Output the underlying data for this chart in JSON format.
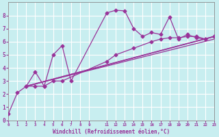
{
  "background_color": "#c8eef0",
  "line_color": "#993399",
  "grid_color": "#ffffff",
  "xlabel": "Windchill (Refroidissement éolien,°C)",
  "xlabel_color": "#993399",
  "ylabel_color": "#993399",
  "ylim": [
    0,
    9
  ],
  "xlim": [
    0,
    23
  ],
  "yticks": [
    0,
    1,
    2,
    3,
    4,
    5,
    6,
    7,
    8
  ],
  "xticks": [
    0,
    1,
    2,
    3,
    4,
    5,
    6,
    7,
    8,
    9,
    11,
    12,
    13,
    14,
    15,
    16,
    17,
    18,
    19,
    20,
    21,
    22,
    23
  ],
  "series1_x": [
    0,
    1,
    2,
    3,
    4,
    5,
    6,
    7,
    11,
    12,
    13,
    14,
    15,
    16,
    17,
    18,
    19,
    20,
    21,
    22,
    23
  ],
  "series1_y": [
    0.5,
    2.1,
    2.6,
    3.7,
    2.6,
    5.0,
    5.7,
    3.0,
    8.2,
    8.4,
    8.35,
    7.0,
    6.4,
    6.7,
    6.55,
    7.9,
    6.2,
    6.55,
    6.3,
    6.2,
    6.4
  ],
  "series2_x": [
    2,
    3,
    4,
    5,
    6,
    11,
    12,
    14,
    16,
    17,
    18,
    19,
    20,
    21,
    22,
    23
  ],
  "series2_y": [
    2.6,
    2.6,
    2.6,
    3.0,
    3.0,
    4.5,
    5.0,
    5.5,
    6.0,
    6.2,
    6.3,
    6.3,
    6.4,
    6.4,
    6.2,
    6.4
  ],
  "line1_x": [
    2,
    23
  ],
  "line1_y": [
    2.6,
    6.4
  ],
  "line2_x": [
    2,
    23
  ],
  "line2_y": [
    2.6,
    6.2
  ],
  "line3_x": [
    2,
    23
  ],
  "line3_y": [
    2.6,
    6.4
  ]
}
